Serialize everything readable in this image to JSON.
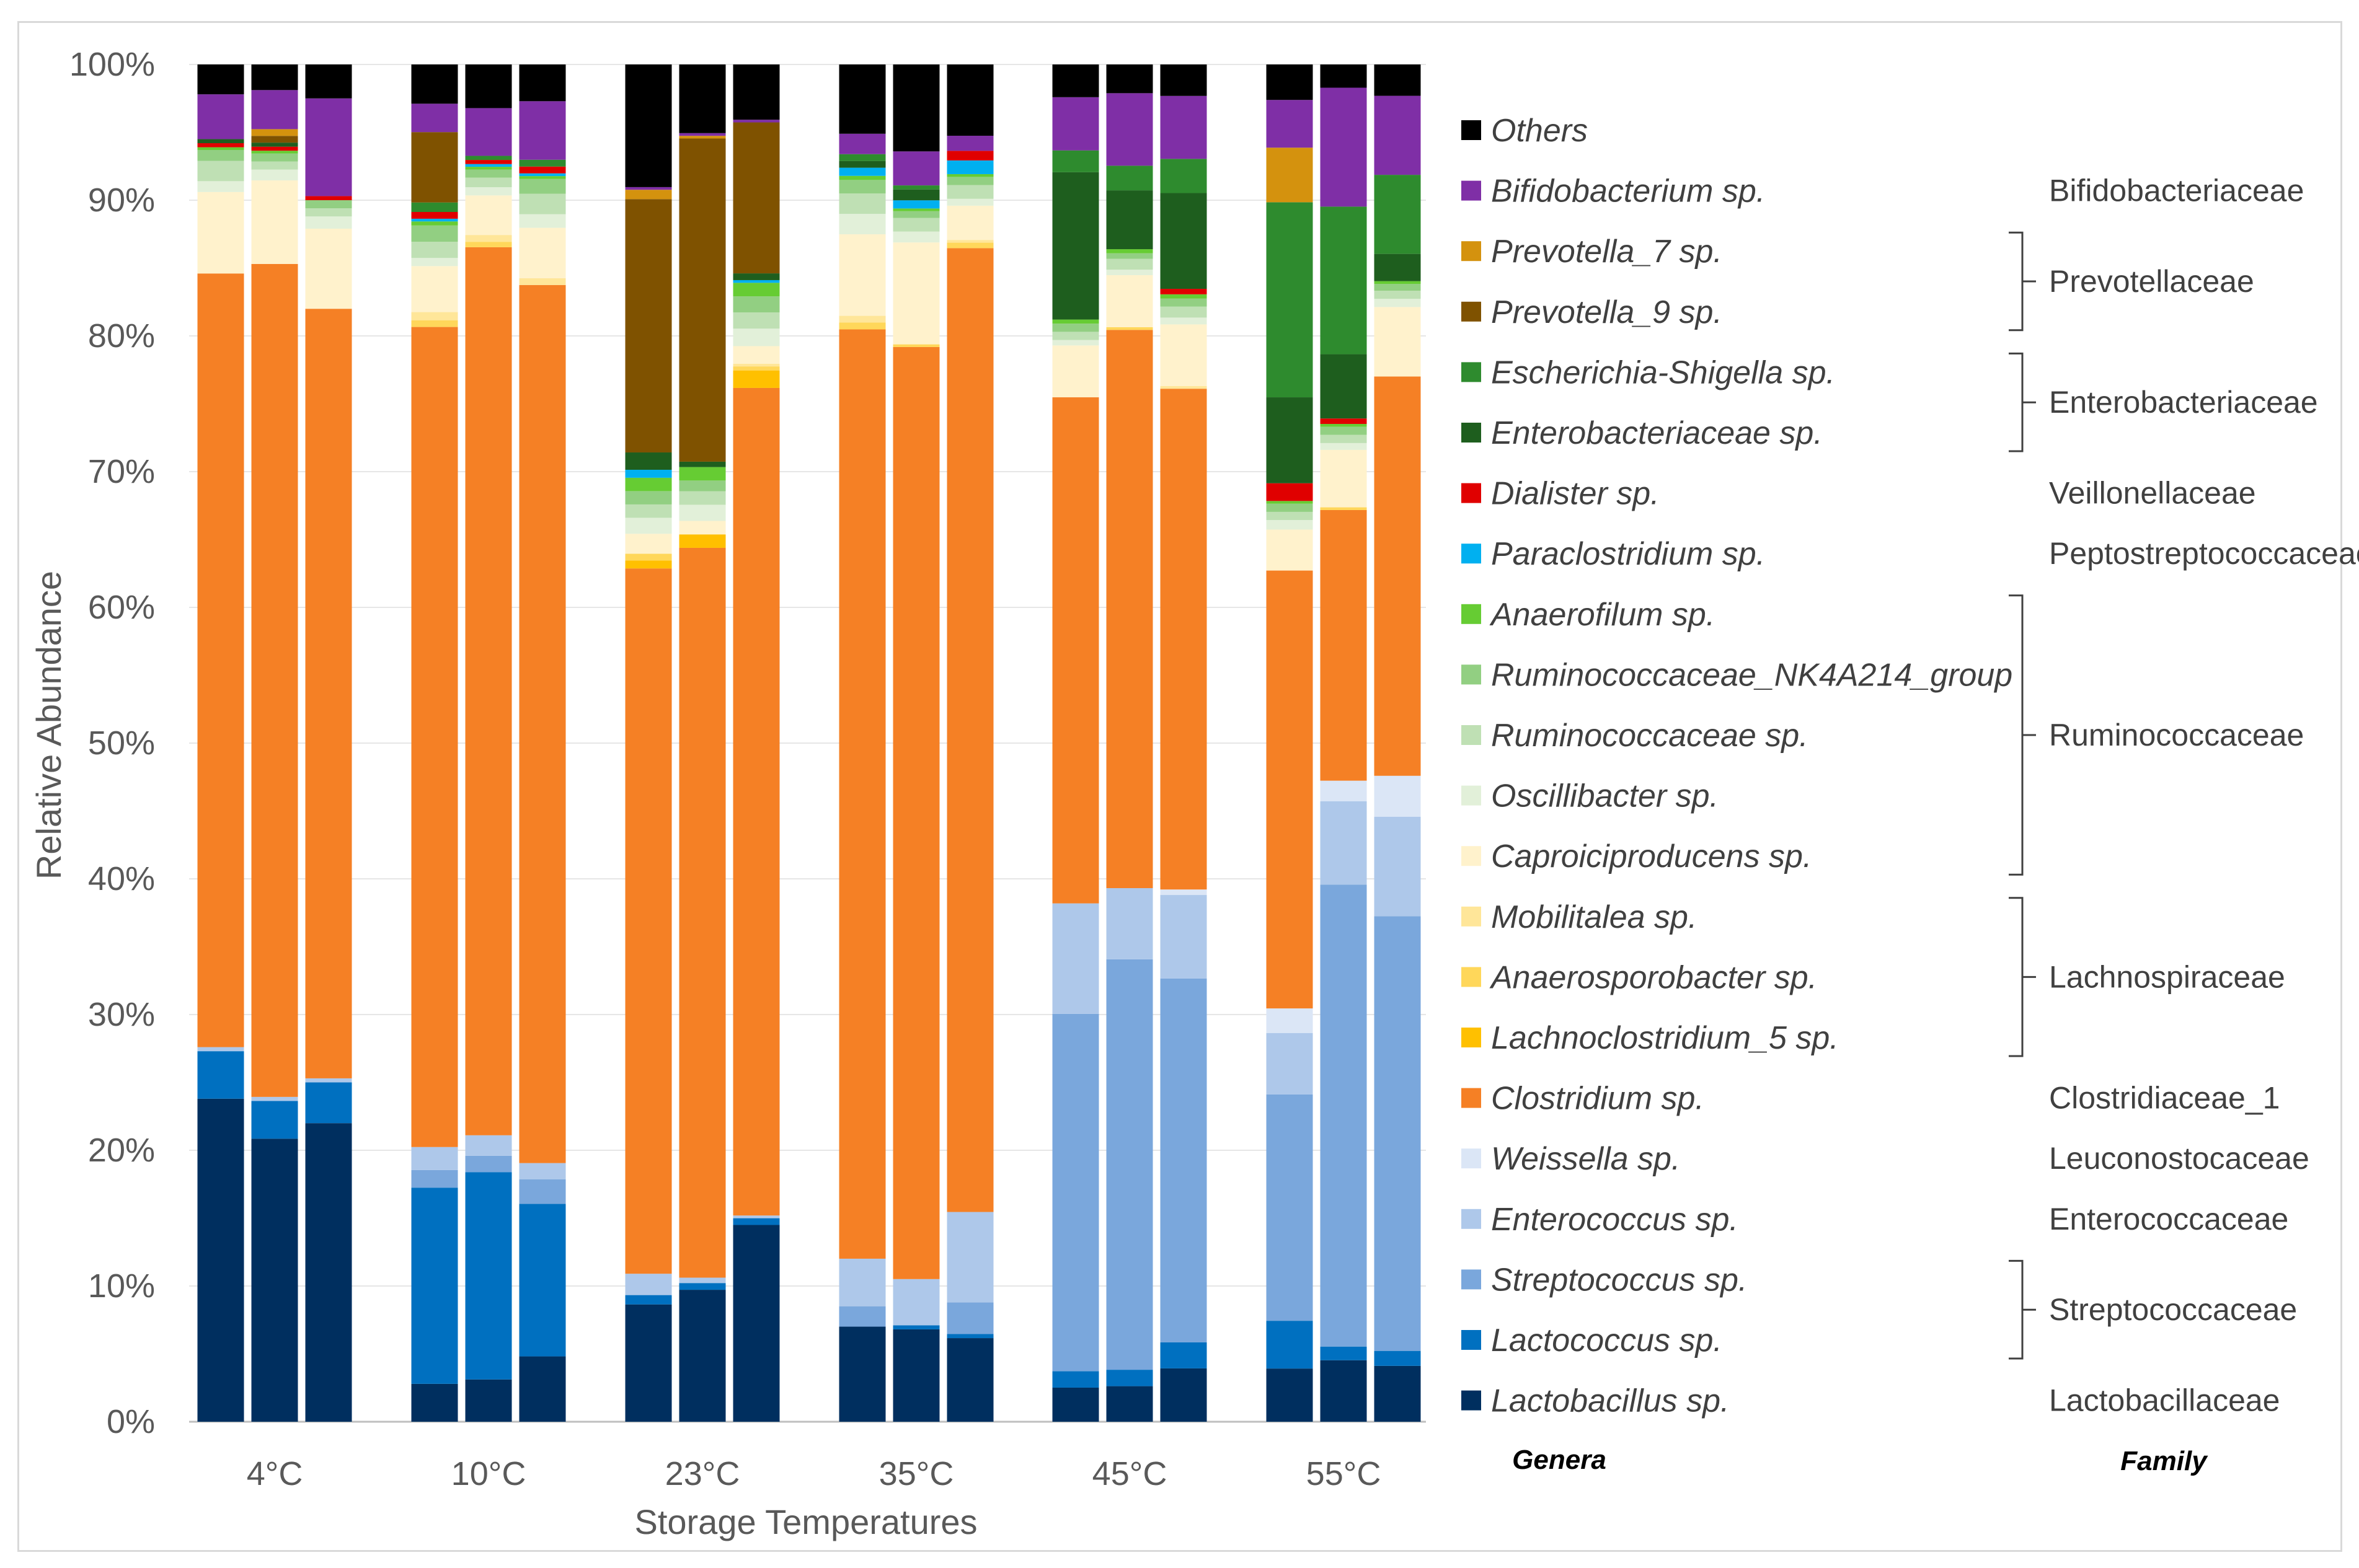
{
  "chart_data": {
    "type": "stacked-bar",
    "title": "",
    "ylabel": "Relative Abundance",
    "xlabel": "Storage Temperatures",
    "ylim": [
      0,
      100
    ],
    "y_ticks": [
      "0%",
      "10%",
      "20%",
      "30%",
      "40%",
      "50%",
      "60%",
      "70%",
      "80%",
      "90%",
      "100%"
    ],
    "groups": [
      "4°C",
      "10°C",
      "23°C",
      "35°C",
      "45°C",
      "55°C"
    ],
    "replicates_per_group": 3,
    "series": [
      {
        "name": "Lactobacillus sp.",
        "color": "#002f5f",
        "values": [
          23.8,
          21,
          22,
          2.8,
          3.1,
          4.8,
          8.8,
          9.8,
          14.6,
          7,
          6.8,
          6.1,
          2.5,
          2.6,
          3.9,
          3.9,
          4.5,
          4.1
        ]
      },
      {
        "name": "Lactococcus sp.",
        "color": "#0070c0",
        "values": [
          3.5,
          2.8,
          3,
          14.5,
          15.2,
          11.2,
          0.7,
          0.5,
          0.5,
          0,
          0.3,
          0.3,
          1.2,
          1.2,
          1.9,
          3.5,
          1,
          1.1
        ]
      },
      {
        "name": "Streptococcus sp.",
        "color": "#7aa7dc",
        "values": [
          0,
          0,
          0,
          1.3,
          1.2,
          1.8,
          0,
          0,
          0,
          1.5,
          0,
          2.3,
          26.2,
          30,
          26.6,
          16.6,
          33.8,
          31.9
        ]
      },
      {
        "name": "Enterococcus sp.",
        "color": "#aec8ea",
        "values": [
          0.3,
          0.3,
          0.3,
          1.7,
          1.5,
          1.2,
          1.6,
          0.4,
          0.2,
          3.5,
          3.4,
          6.6,
          8.1,
          5.2,
          6.1,
          4.5,
          6.1,
          7.3
        ]
      },
      {
        "name": "Weissella sp.",
        "color": "#dbe6f6",
        "values": [
          0,
          0,
          0,
          0,
          0,
          0,
          0,
          0,
          0,
          0,
          0,
          0,
          0,
          0,
          0.4,
          1.8,
          1.5,
          3
        ]
      },
      {
        "name": "Clostridium sp.",
        "color": "#f58025",
        "values": [
          57,
          61.8,
          56.7,
          60.6,
          65.1,
          64.5,
          52.9,
          54.2,
          61.4,
          68.4,
          68.6,
          70.3,
          37.1,
          40.8,
          36.6,
          32.1,
          19.8,
          29.3
        ]
      },
      {
        "name": "Lachnoclostridium_5 sp.",
        "color": "#ffc000",
        "values": [
          0,
          0,
          0,
          0,
          0,
          0,
          0.6,
          1,
          1.3,
          0,
          0,
          0,
          0,
          0,
          0,
          0,
          0,
          0
        ]
      },
      {
        "name": "Anaerosporobacter sp.",
        "color": "#ffd75a",
        "values": [
          0,
          0,
          0,
          0.5,
          0.4,
          0,
          0.5,
          0,
          0.3,
          0.5,
          0.2,
          0.4,
          0,
          0.2,
          0,
          0,
          0.2,
          0
        ]
      },
      {
        "name": "Mobilitalea sp.",
        "color": "#ffe699",
        "values": [
          0,
          0,
          0,
          0.6,
          0.5,
          0.5,
          0,
          0,
          0.2,
          0.5,
          0,
          0.2,
          0,
          0,
          0.2,
          0,
          0,
          0
        ]
      },
      {
        "name": "Caproiciproducens sp.",
        "color": "#fff2cc",
        "values": [
          6,
          6.2,
          5.9,
          3.4,
          2.9,
          3.7,
          1.5,
          1,
          1.3,
          6,
          7.5,
          2.5,
          3.8,
          3.8,
          4.5,
          3,
          4.2,
          5.1
        ]
      },
      {
        "name": "Oscillibacter sp.",
        "color": "#e2f0d9",
        "values": [
          0.8,
          0.8,
          0.9,
          0.6,
          0.6,
          1,
          1.2,
          1.2,
          1.3,
          1.5,
          0.8,
          0.5,
          0.4,
          0.4,
          0.5,
          0.7,
          0.5,
          0.6
        ]
      },
      {
        "name": "Ruminococcaceae sp.",
        "color": "#bfe0b4",
        "values": [
          1.5,
          0.6,
          0.6,
          1.2,
          0.7,
          1.5,
          1,
          1,
          1.2,
          1.5,
          1,
          1,
          0.6,
          0.8,
          0.8,
          0.6,
          0.6,
          0.6
        ]
      },
      {
        "name": "Ruminococcaceae_NK4A214_group",
        "color": "#92cf82",
        "values": [
          0.8,
          0.6,
          0.6,
          1.2,
          0.6,
          1.1,
          1,
          0.8,
          1.2,
          1,
          0.5,
          0.6,
          0.6,
          0.4,
          0.6,
          0.6,
          0.6,
          0.5
        ]
      },
      {
        "name": "Anaerofilum sp.",
        "color": "#66cc33",
        "values": [
          0.2,
          0.2,
          0,
          0.3,
          0.2,
          0.2,
          1,
          1,
          1,
          0.3,
          0.2,
          0.2,
          0.3,
          0.3,
          0.3,
          0.2,
          0.2,
          0.2
        ]
      },
      {
        "name": "Paraclostridium sp.",
        "color": "#00b0f0",
        "values": [
          0,
          0,
          0,
          0.2,
          0.2,
          0.2,
          0.6,
          0,
          0.2,
          0.6,
          0.6,
          1,
          0,
          0,
          0,
          0,
          0,
          0
        ]
      },
      {
        "name": "Dialister sp.",
        "color": "#e00000",
        "values": [
          0.3,
          0.3,
          0.3,
          0.5,
          0.3,
          0.5,
          0,
          0,
          0,
          0,
          0,
          0.7,
          0,
          0,
          0.4,
          1.3,
          0.4,
          0
        ]
      },
      {
        "name": "Enterobacteriaceae sp.",
        "color": "#1e5e1e",
        "values": [
          0.3,
          0.3,
          0,
          0,
          0,
          0,
          1.3,
          0.4,
          0.5,
          0.5,
          0.8,
          0,
          10.8,
          4.3,
          7,
          6.3,
          4.7,
          2
        ]
      },
      {
        "name": "Escherichia-Shigella sp.",
        "color": "#2e8b2e",
        "values": [
          0,
          0,
          0,
          0.7,
          0.3,
          0.5,
          0,
          0,
          0,
          0.5,
          0.3,
          0,
          1.6,
          1.8,
          2.5,
          14.3,
          10.8,
          5.8
        ]
      },
      {
        "name": "Prevotella_9 sp.",
        "color": "#7f5200",
        "values": [
          0,
          0.5,
          0,
          5.2,
          0,
          0,
          19,
          24,
          11.2,
          0,
          0,
          0,
          0,
          0,
          0,
          0,
          0,
          0
        ]
      },
      {
        "name": "Prevotella_7 sp.",
        "color": "#d4920e",
        "values": [
          0,
          0.5,
          0,
          0,
          0,
          0,
          0.7,
          0.2,
          0,
          0,
          0,
          0,
          0,
          0,
          0,
          4,
          0,
          0
        ]
      },
      {
        "name": "Bifidobacterium sp.",
        "color": "#7f2fa6",
        "values": [
          3.3,
          2.9,
          7.2,
          2.1,
          3.5,
          4.3,
          0.2,
          0.2,
          0.2,
          1.5,
          2.5,
          1.1,
          3.9,
          5.3,
          4.6,
          3.5,
          8.7,
          5.8
        ]
      },
      {
        "name": "Others",
        "color": "#000000",
        "values": [
          2.2,
          1.9,
          2.5,
          2.9,
          3.2,
          2.7,
          9.2,
          5.1,
          4.1,
          5.1,
          6.4,
          5.2,
          2.4,
          2.1,
          2.3,
          2.6,
          1.7,
          2.3
        ]
      }
    ],
    "legend_order": [
      "Others",
      "Bifidobacterium sp.",
      "Prevotella_7 sp.",
      "Prevotella_9 sp.",
      "Escherichia-Shigella sp.",
      "Enterobacteriaceae sp.",
      "Dialister sp.",
      "Paraclostridium sp.",
      "Anaerofilum sp.",
      "Ruminococcaceae_NK4A214_group",
      "Ruminococcaceae sp.",
      "Oscillibacter sp.",
      "Caproiciproducens sp.",
      "Mobilitalea sp.",
      "Anaerosporobacter sp.",
      "Lachnoclostridium_5 sp.",
      "Clostridium sp.",
      "Weissella sp.",
      "Enterococcus sp.",
      "Streptococcus sp.",
      "Lactococcus sp.",
      "Lactobacillus sp."
    ],
    "families": [
      {
        "name": "Bifidobacteriaceae",
        "first": 1,
        "last": 1
      },
      {
        "name": "Prevotellaceae",
        "first": 2,
        "last": 3
      },
      {
        "name": "Enterobacteriaceae",
        "first": 4,
        "last": 5
      },
      {
        "name": "Veillonellaceae",
        "first": 6,
        "last": 6
      },
      {
        "name": "Peptostreptococcaceae",
        "first": 7,
        "last": 7
      },
      {
        "name": "Ruminococcaceae",
        "first": 8,
        "last": 12
      },
      {
        "name": "Lachnospiraceae",
        "first": 13,
        "last": 15
      },
      {
        "name": "Clostridiaceae_1",
        "first": 16,
        "last": 16
      },
      {
        "name": "Leuconostocaceae",
        "first": 17,
        "last": 17
      },
      {
        "name": "Enterococcaceae",
        "first": 18,
        "last": 18
      },
      {
        "name": "Streptococcaceae",
        "first": 19,
        "last": 20
      },
      {
        "name": "Lactobacillaceae",
        "first": 21,
        "last": 21
      }
    ],
    "legend_column_headers": {
      "genera": "Genera",
      "family": "Family"
    }
  }
}
